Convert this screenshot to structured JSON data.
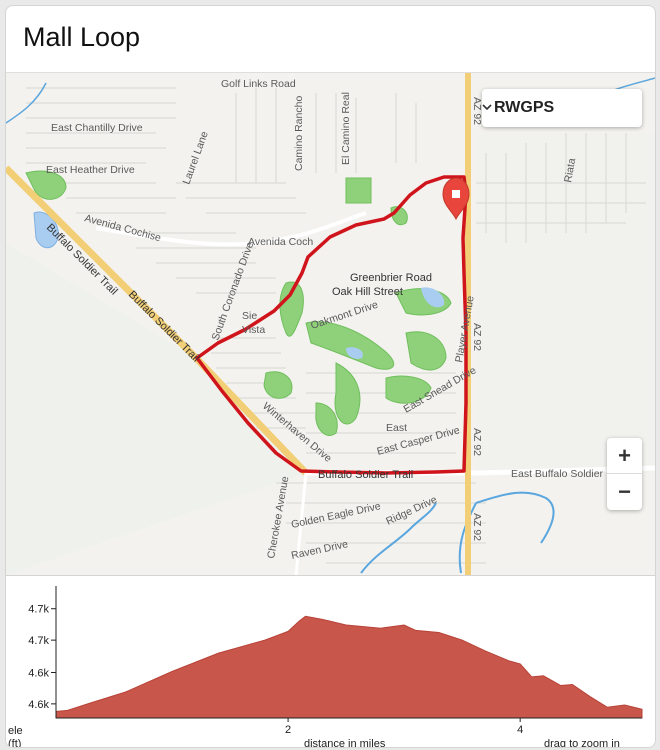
{
  "page": {
    "title": "Mall Loop"
  },
  "map": {
    "layer_select": {
      "label": "RWGPS",
      "icon": "chevron-down-icon"
    },
    "zoom_in": "+",
    "zoom_out": "−",
    "marker_icon": "map-pin-icon",
    "route_color": "#d0141c",
    "street_labels": {
      "golf_links": "Golf Links Road",
      "east_chantilly": "East Chantilly Drive",
      "east_heather": "East Heather Drive",
      "laurel": "Laurel Lane",
      "camino_rancho": "Camino Rancho",
      "el_camino_real": "El Camino Real",
      "avenida_cochise": "Avenida Cochise",
      "avenida_cochise_2": "Avenida Coch",
      "buffalo_soldier_trail": "Buffalo Soldier Trail",
      "buffalo_soldier_trail_2": "Buffalo Soldier Trail",
      "buffalo_soldier_trail_3": "Buffalo Soldier Trail",
      "south_coronado": "South Coronado Drive",
      "greenbrier": "Greenbrier Road",
      "oak_hill": "Oak Hill Street",
      "oakmont": "Oakmont Drive",
      "sierra_vista_1": "Sie",
      "sierra_vista_2": "Vista",
      "player_avenue": "Player Avenue",
      "az92_top": "AZ 92",
      "az92_mid": "AZ 92",
      "az92_low": "AZ 92",
      "az92_bottom": "AZ 92",
      "east_snead": "East Snead Drive",
      "east": "East",
      "east_casper": "East Casper Drive",
      "winterhaven": "Winterhaven Drive",
      "east_buffalo_soldier": "East Buffalo Soldier",
      "cherokee": "Cherokee Avenue",
      "golden_eagle": "Golden Eagle Drive",
      "ridge": "Ridge Drive",
      "raven": "Raven Drive",
      "riata": "Riata"
    }
  },
  "elevation": {
    "y_axis_label_1": "ele",
    "y_axis_label_2": "(ft)",
    "x_axis_label": "distance in miles",
    "hint": "drag to zoom in",
    "fill_color": "#c9564a"
  },
  "chart_data": {
    "type": "area",
    "title": "",
    "xlabel": "distance in miles",
    "ylabel": "ele (ft)",
    "xlim": [
      0,
      5.05
    ],
    "ylim": [
      4590,
      4712
    ],
    "x_ticks": [
      2,
      4
    ],
    "x_tick_labels": [
      "2",
      "4"
    ],
    "y_ticks": [
      4603,
      4632,
      4662,
      4691
    ],
    "y_tick_labels": [
      "4.6k",
      "4.6k",
      "4.7k",
      "4.7k"
    ],
    "series": [
      {
        "x": [
          0,
          0.1,
          0.3,
          0.6,
          1.0,
          1.4,
          1.8,
          2.0,
          2.1,
          2.15,
          2.3,
          2.5,
          2.8,
          3.0,
          3.1,
          3.3,
          3.5,
          3.7,
          3.9,
          4.0,
          4.1,
          4.2,
          4.35,
          4.45,
          4.6,
          4.75,
          4.9,
          5.05
        ],
        "y": [
          4596,
          4597,
          4604,
          4614,
          4633,
          4650,
          4662,
          4670,
          4680,
          4684,
          4681,
          4676,
          4673,
          4676,
          4671,
          4669,
          4662,
          4652,
          4643,
          4640,
          4628,
          4629,
          4620,
          4621,
          4610,
          4600,
          4602,
          4598
        ]
      }
    ]
  }
}
